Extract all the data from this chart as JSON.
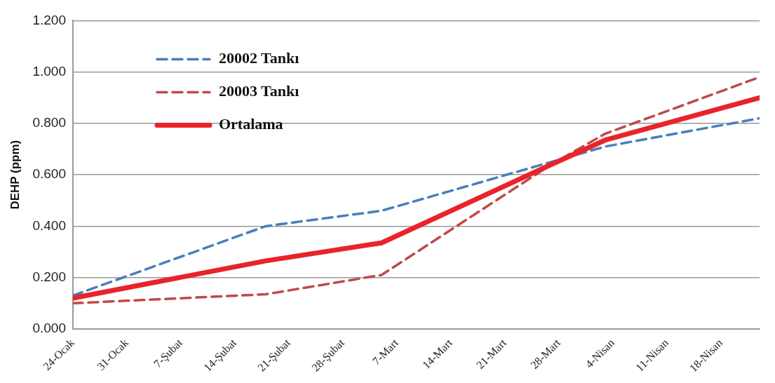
{
  "chart_data": {
    "type": "line",
    "ylabel": "DEHP (ppm)",
    "xlim": [
      "--01-24",
      "--04-23"
    ],
    "xticks": [
      {
        "value": "--01-24",
        "label": "24-Ocak"
      },
      {
        "value": "--01-31",
        "label": "31-Ocak"
      },
      {
        "value": "--02-07",
        "label": "7-Şubat"
      },
      {
        "value": "--02-14",
        "label": "14-Şubat"
      },
      {
        "value": "--02-21",
        "label": "21-Şubat"
      },
      {
        "value": "--02-28",
        "label": "28-Şubat"
      },
      {
        "value": "--03-07",
        "label": "7-Mart"
      },
      {
        "value": "--03-14",
        "label": "14-Mart"
      },
      {
        "value": "--03-21",
        "label": "21-Mart"
      },
      {
        "value": "--03-28",
        "label": "28-Mart"
      },
      {
        "value": "--04-04",
        "label": "4-Nisan"
      },
      {
        "value": "--04-11",
        "label": "11-Nisan"
      },
      {
        "value": "--04-18",
        "label": "18-Nisan"
      }
    ],
    "ylim": [
      0,
      1.2
    ],
    "yticks": [
      {
        "value": 0,
        "label": "0.000"
      },
      {
        "value": 0.2,
        "label": "0.200"
      },
      {
        "value": 0.4,
        "label": "0.400"
      },
      {
        "value": 0.6,
        "label": "0.600"
      },
      {
        "value": 0.8,
        "label": "0.800"
      },
      {
        "value": 1,
        "label": "1.000"
      },
      {
        "value": 1.2,
        "label": "1.200"
      }
    ],
    "grid": "y",
    "legend": "top left",
    "marker": "none",
    "x": [
      "--01-24",
      "--02-18",
      "--03-05",
      "--03-27",
      "--04-03",
      "--04-23"
    ],
    "series": [
      {
        "name": "20002 Tankı",
        "color": "#4a7ebb",
        "line_style": "dashed",
        "values": [
          0.13,
          0.4,
          0.46,
          0.65,
          0.71,
          0.82
        ]
      },
      {
        "name": "20003 Tankı",
        "color": "#be4b48",
        "line_style": "dashed",
        "values": [
          0.1,
          0.135,
          0.21,
          0.64,
          0.76,
          0.98
        ]
      },
      {
        "name": "Ortalama",
        "color": "#e8242a",
        "line_style": "solid",
        "values": [
          0.12,
          0.265,
          0.335,
          0.64,
          0.735,
          0.9
        ]
      }
    ]
  }
}
